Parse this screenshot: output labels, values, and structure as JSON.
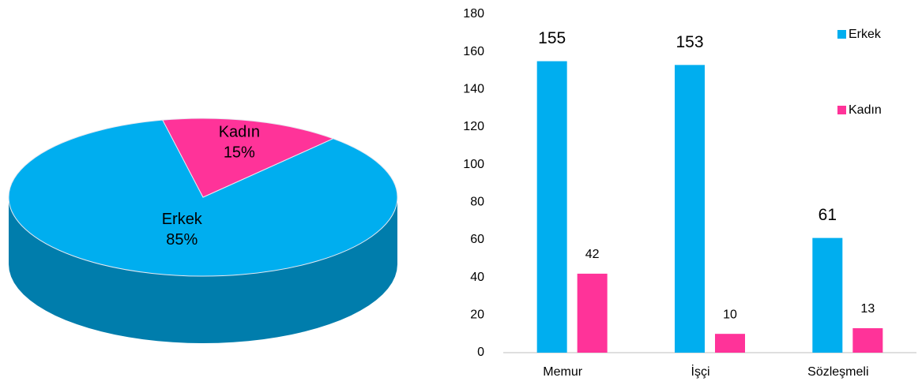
{
  "chart_data": [
    {
      "type": "pie",
      "categories": [
        "Erkek",
        "Kadın"
      ],
      "values": [
        85,
        15
      ],
      "value_labels": [
        "85%",
        "15%"
      ],
      "colors": [
        "#00aeef",
        "#ff3399"
      ]
    },
    {
      "type": "bar",
      "categories": [
        "Memur",
        "İşçi",
        "Sözleşmeli"
      ],
      "series": [
        {
          "name": "Erkek",
          "color": "#00aeef",
          "values": [
            155,
            153,
            61
          ]
        },
        {
          "name": "Kadın",
          "color": "#ff3399",
          "values": [
            42,
            10,
            13
          ]
        }
      ],
      "ylim": [
        0,
        180
      ],
      "yticks": [
        0,
        20,
        40,
        60,
        80,
        100,
        120,
        140,
        160,
        180
      ],
      "legend": "right"
    }
  ]
}
